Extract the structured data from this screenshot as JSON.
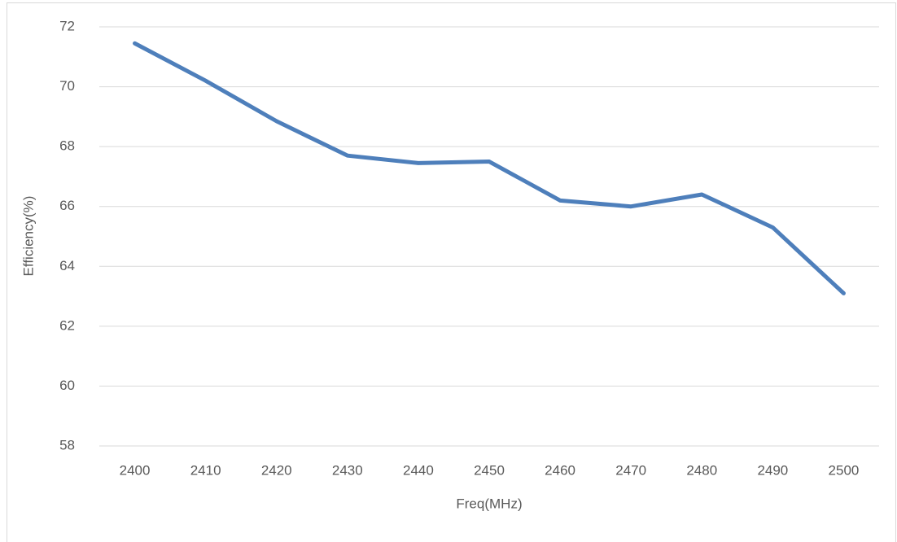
{
  "chart_data": {
    "type": "line",
    "categories": [
      "2400",
      "2410",
      "2420",
      "2430",
      "2440",
      "2450",
      "2460",
      "2470",
      "2480",
      "2490",
      "2500"
    ],
    "series": [
      {
        "name": "Efficiency",
        "color": "#4e7fbb",
        "values": [
          71.45,
          70.2,
          68.85,
          67.7,
          67.45,
          67.5,
          66.2,
          66.0,
          66.4,
          65.3,
          63.1
        ]
      }
    ],
    "ylim": [
      58,
      72
    ],
    "yticks": [
      58,
      60,
      62,
      64,
      66,
      68,
      70,
      72
    ],
    "grid": true,
    "x_label": "Freq(MHz)",
    "y_label": "Efficiency(%)"
  }
}
